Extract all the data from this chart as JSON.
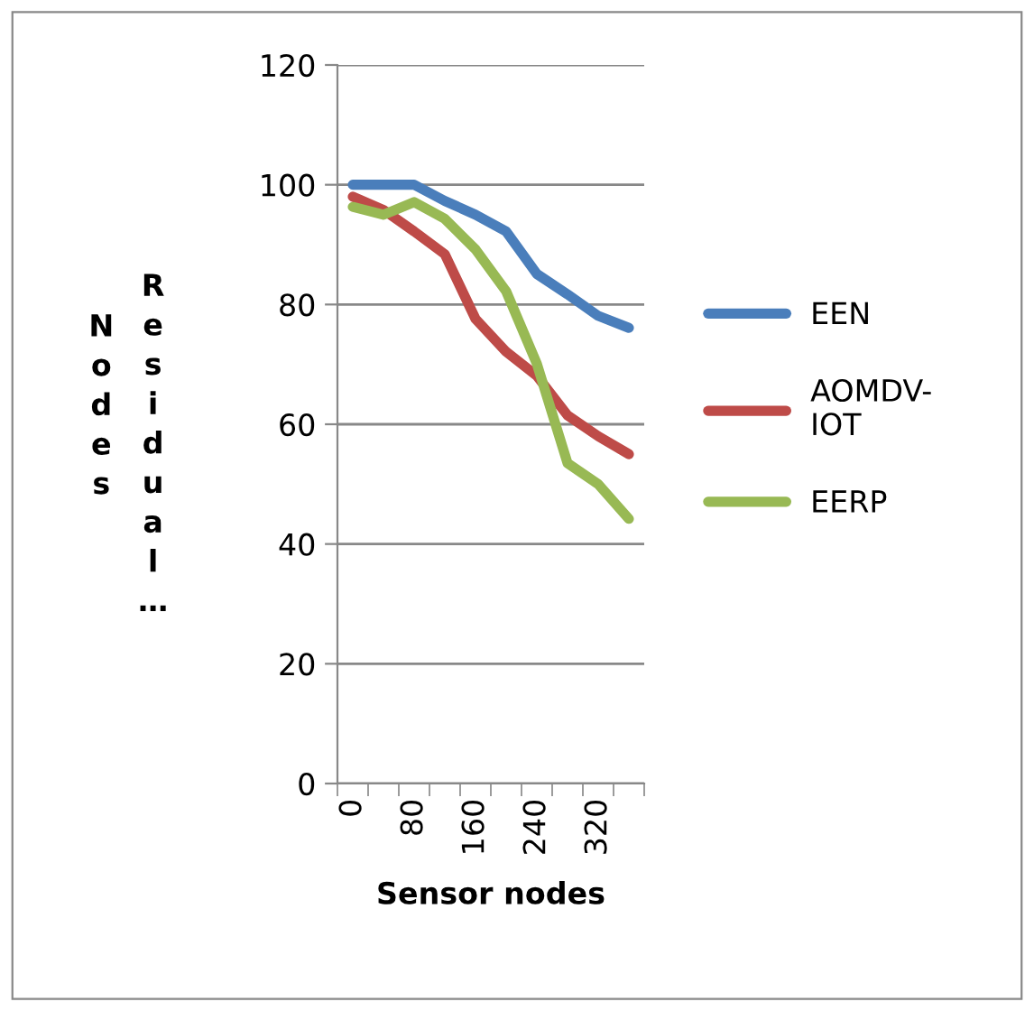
{
  "chart_data": {
    "type": "line",
    "xlabel": "Sensor nodes",
    "ylabel": "Residual… Nodes",
    "categories": [
      "0",
      null,
      "80",
      null,
      "160",
      null,
      "240",
      null,
      "320",
      null
    ],
    "series": [
      {
        "name": "EEN",
        "color": "#4a7ebb",
        "values": [
          100,
          100,
          100,
          97.3,
          95,
          92.2,
          85.1,
          81.7,
          78.1,
          76.1
        ]
      },
      {
        "name": "AOMDV-IOT",
        "color": "#be4b48",
        "values": [
          98,
          95.8,
          92.2,
          88.4,
          77.6,
          72.1,
          68.1,
          61.5,
          58,
          55
        ]
      },
      {
        "name": "EERP",
        "color": "#98b954",
        "values": [
          96.3,
          95,
          97.1,
          94.3,
          89.2,
          82.2,
          70.1,
          53.5,
          50,
          44.2
        ]
      }
    ],
    "ylim": [
      0,
      120
    ],
    "yticks": [
      0,
      20,
      40,
      60,
      80,
      100,
      120
    ],
    "grid": "y",
    "legend": "right",
    "marker": "none",
    "line_style": "solid"
  }
}
